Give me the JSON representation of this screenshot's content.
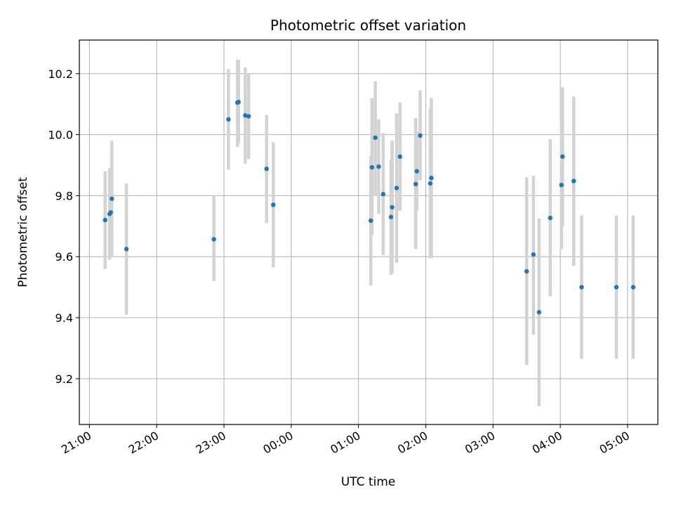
{
  "chart_data": {
    "type": "scatter",
    "title": "Photometric offset variation",
    "xlabel": "UTC time",
    "ylabel": "Photometric offset",
    "x_tick_labels": [
      "21:00",
      "22:00",
      "23:00",
      "00:00",
      "01:00",
      "02:00",
      "03:00",
      "04:00",
      "05:00"
    ],
    "x_ticks_hours": [
      21,
      22,
      23,
      24,
      25,
      26,
      27,
      28,
      29
    ],
    "y_ticks": [
      9.2,
      9.4,
      9.6,
      9.8,
      10.0,
      10.2
    ],
    "y_tick_labels": [
      "9.2",
      "9.4",
      "9.6",
      "9.8",
      "10.0",
      "10.2"
    ],
    "xlim_hours": [
      20.85,
      29.45
    ],
    "ylim": [
      9.05,
      10.31
    ],
    "grid": true,
    "marker_color": "#1f77b4",
    "errorbar_color": "#d3d3d3",
    "points": [
      {
        "t": "21:14",
        "y": 9.72,
        "ylo": 9.56,
        "yhi": 9.88
      },
      {
        "t": "21:18",
        "y": 9.74,
        "ylo": 9.59,
        "yhi": 9.89
      },
      {
        "t": "21:19",
        "y": 9.745,
        "ylo": 9.6,
        "yhi": 9.89
      },
      {
        "t": "21:20",
        "y": 9.79,
        "ylo": 9.6,
        "yhi": 9.98
      },
      {
        "t": "21:33",
        "y": 9.625,
        "ylo": 9.41,
        "yhi": 9.84
      },
      {
        "t": "22:51",
        "y": 9.657,
        "ylo": 9.52,
        "yhi": 9.8
      },
      {
        "t": "23:04",
        "y": 10.05,
        "ylo": 9.885,
        "yhi": 10.215
      },
      {
        "t": "23:12",
        "y": 10.105,
        "ylo": 9.96,
        "yhi": 10.245
      },
      {
        "t": "23:13",
        "y": 10.107,
        "ylo": 9.97,
        "yhi": 10.245
      },
      {
        "t": "23:19",
        "y": 10.063,
        "ylo": 9.905,
        "yhi": 10.22
      },
      {
        "t": "23:22",
        "y": 10.06,
        "ylo": 9.92,
        "yhi": 10.2
      },
      {
        "t": "23:38",
        "y": 9.888,
        "ylo": 9.71,
        "yhi": 10.065
      },
      {
        "t": "23:44",
        "y": 9.77,
        "ylo": 9.565,
        "yhi": 9.975
      },
      {
        "t": "01:11",
        "y": 9.718,
        "ylo": 9.505,
        "yhi": 9.93
      },
      {
        "t": "01:12",
        "y": 9.893,
        "ylo": 9.67,
        "yhi": 10.12
      },
      {
        "t": "01:15",
        "y": 9.99,
        "ylo": 9.8,
        "yhi": 10.175
      },
      {
        "t": "01:18",
        "y": 9.895,
        "ylo": 9.74,
        "yhi": 10.05
      },
      {
        "t": "01:22",
        "y": 9.805,
        "ylo": 9.605,
        "yhi": 10.005
      },
      {
        "t": "01:29",
        "y": 9.73,
        "ylo": 9.54,
        "yhi": 9.92
      },
      {
        "t": "01:30",
        "y": 9.762,
        "ylo": 9.545,
        "yhi": 9.98
      },
      {
        "t": "01:34",
        "y": 9.825,
        "ylo": 9.58,
        "yhi": 10.07
      },
      {
        "t": "01:37",
        "y": 9.928,
        "ylo": 9.75,
        "yhi": 10.105
      },
      {
        "t": "01:51",
        "y": 9.838,
        "ylo": 9.625,
        "yhi": 10.055
      },
      {
        "t": "01:52",
        "y": 9.88,
        "ylo": 9.75,
        "yhi": 10.01
      },
      {
        "t": "01:55",
        "y": 9.997,
        "ylo": 9.85,
        "yhi": 10.145
      },
      {
        "t": "02:04",
        "y": 9.84,
        "ylo": 9.595,
        "yhi": 10.085
      },
      {
        "t": "02:05",
        "y": 9.858,
        "ylo": 9.595,
        "yhi": 10.12
      },
      {
        "t": "03:30",
        "y": 9.552,
        "ylo": 9.245,
        "yhi": 9.86
      },
      {
        "t": "03:36",
        "y": 9.607,
        "ylo": 9.345,
        "yhi": 9.865
      },
      {
        "t": "03:41",
        "y": 9.418,
        "ylo": 9.11,
        "yhi": 9.725
      },
      {
        "t": "03:51",
        "y": 9.727,
        "ylo": 9.47,
        "yhi": 9.985
      },
      {
        "t": "04:01",
        "y": 9.835,
        "ylo": 9.625,
        "yhi": 10.045
      },
      {
        "t": "04:02",
        "y": 9.928,
        "ylo": 9.7,
        "yhi": 10.155
      },
      {
        "t": "04:12",
        "y": 9.848,
        "ylo": 9.57,
        "yhi": 10.125
      },
      {
        "t": "04:19",
        "y": 9.5,
        "ylo": 9.265,
        "yhi": 9.735
      },
      {
        "t": "04:50",
        "y": 9.5,
        "ylo": 9.265,
        "yhi": 9.735
      },
      {
        "t": "05:05",
        "y": 9.5,
        "ylo": 9.265,
        "yhi": 9.735
      }
    ]
  }
}
